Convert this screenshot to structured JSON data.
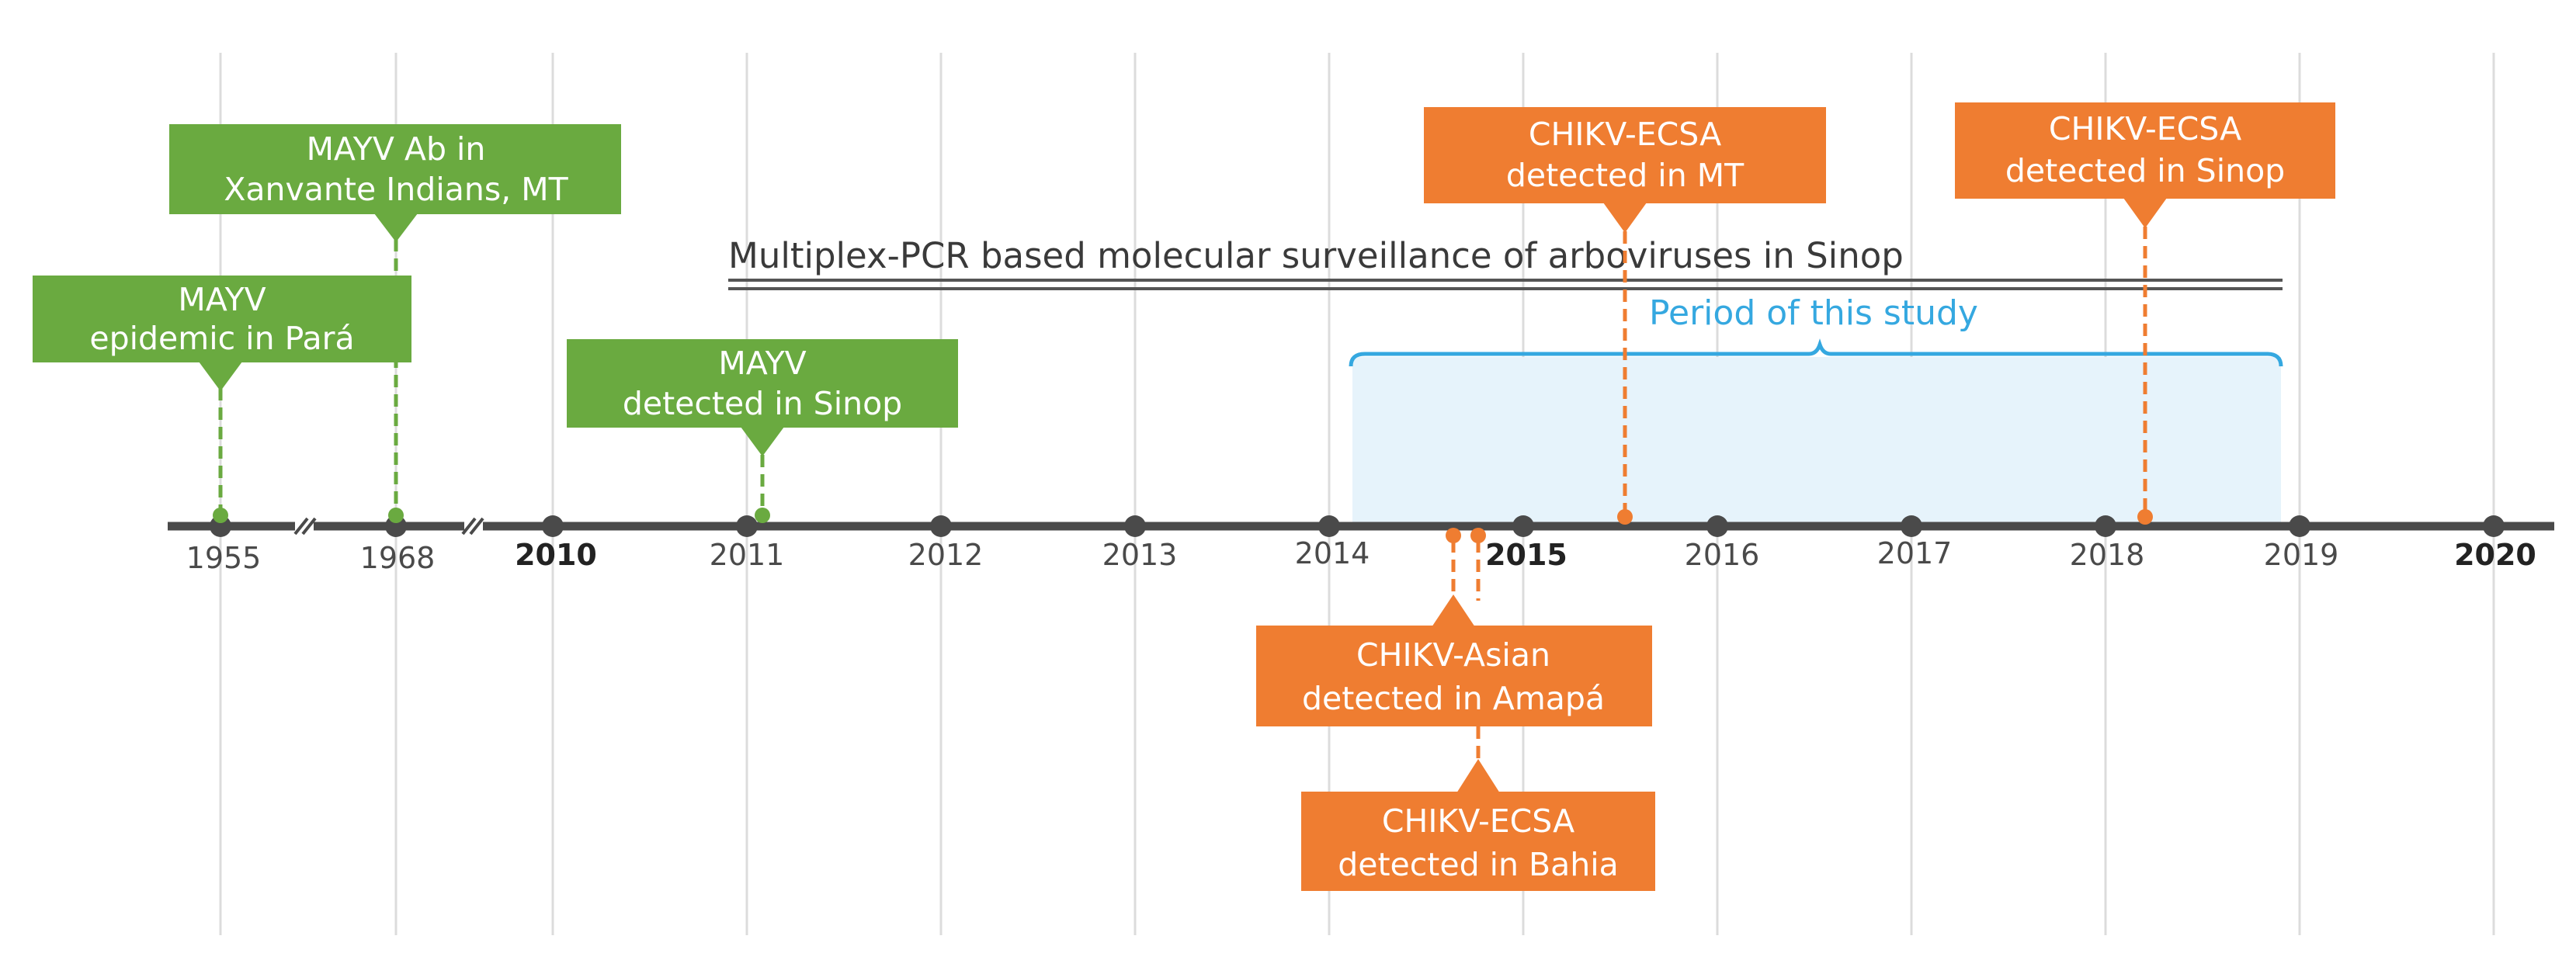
{
  "colors": {
    "green": "#6aaa40",
    "orange": "#ef7d31",
    "blue": "#35a8e0",
    "blue_fill": "#e6f3fb",
    "axis": "#4a4a4a",
    "grid": "#dcdcdc"
  },
  "ticks": [
    {
      "label": "1955",
      "bold": false
    },
    {
      "label": "1968",
      "bold": false
    },
    {
      "label": "2010",
      "bold": true
    },
    {
      "label": "2011",
      "bold": false
    },
    {
      "label": "2012",
      "bold": false
    },
    {
      "label": "2013",
      "bold": false
    },
    {
      "label": "2014",
      "bold": false
    },
    {
      "label": "2015",
      "bold": true
    },
    {
      "label": "2016",
      "bold": false
    },
    {
      "label": "2017",
      "bold": false
    },
    {
      "label": "2018",
      "bold": false
    },
    {
      "label": "2019",
      "bold": false
    },
    {
      "label": "2020",
      "bold": true
    }
  ],
  "surveillance_label": "Multiplex-PCR based molecular surveillance of arboviruses in Sinop",
  "study_period_label": "Period of this study",
  "events": [
    {
      "name": "mayv-epidemic-para",
      "color": "green",
      "year": "1955",
      "lines": [
        "MAYV",
        "epidemic in Pará"
      ]
    },
    {
      "name": "mayv-ab-xavante",
      "color": "green",
      "year": "1968",
      "lines": [
        "MAYV Ab in",
        "Xanvante Indians, MT"
      ]
    },
    {
      "name": "mayv-detected-sinop",
      "color": "green",
      "year": "2011",
      "lines": [
        "MAYV",
        "detected in Sinop"
      ]
    },
    {
      "name": "chikv-ecsa-mt",
      "color": "orange",
      "year": "2015",
      "lines": [
        "CHIKV-ECSA",
        "detected in MT"
      ]
    },
    {
      "name": "chikv-ecsa-sinop",
      "color": "orange",
      "year": "2018",
      "lines": [
        "CHIKV-ECSA",
        "detected in Sinop"
      ]
    },
    {
      "name": "chikv-asian-amapa",
      "color": "orange",
      "year": "2014",
      "lines": [
        "CHIKV-Asian",
        "detected in Amapá"
      ]
    },
    {
      "name": "chikv-ecsa-bahia",
      "color": "orange",
      "year": "2014",
      "lines": [
        "CHIKV-ECSA",
        "detected in Bahia"
      ]
    }
  ]
}
